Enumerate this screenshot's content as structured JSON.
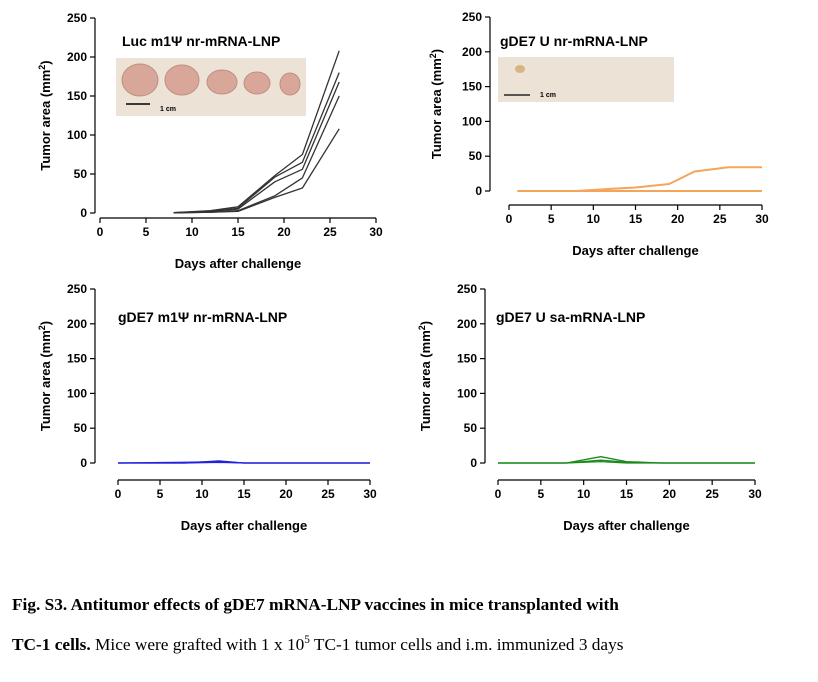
{
  "colors": {
    "luc": "#333333",
    "gde7_u_nr": "#f5a55a",
    "gde7_m1psi": "#2222dd",
    "gde7_sa": "#1b8a1b"
  },
  "chart_data": [
    {
      "type": "line",
      "title": "Luc m1Ψ nr-mRNA-LNP",
      "xlabel": "Days after challenge",
      "ylabel": "Tumor area (mm",
      "ylabel_sup": "2",
      "ylabel_end": ")",
      "xlim": [
        0,
        30
      ],
      "ylim": [
        0,
        250
      ],
      "xticks": [
        0,
        5,
        10,
        15,
        20,
        25,
        30
      ],
      "yticks": [
        0,
        50,
        100,
        150,
        200,
        250
      ],
      "inset": {
        "kind": "tumor-photo",
        "tumors": 5,
        "scalebar_label": "1 cm"
      },
      "color": "#333333",
      "x": [
        8,
        12,
        15,
        19,
        22,
        26
      ],
      "series": [
        {
          "values": [
            0.5,
            3,
            8,
            48,
            75,
            208
          ]
        },
        {
          "values": [
            0.5,
            2,
            6,
            46,
            65,
            180
          ]
        },
        {
          "values": [
            0.3,
            2,
            5,
            40,
            56,
            168
          ]
        },
        {
          "values": [
            0.2,
            1,
            3,
            22,
            45,
            150
          ]
        },
        {
          "values": [
            0.1,
            1,
            2,
            20,
            32,
            108
          ]
        }
      ]
    },
    {
      "type": "line",
      "title": "gDE7 U nr-mRNA-LNP",
      "xlabel": "Days after challenge",
      "ylabel": "Tumor area (mm",
      "ylabel_sup": "2",
      "ylabel_end": ")",
      "xlim": [
        0,
        30
      ],
      "ylim": [
        0,
        250
      ],
      "xticks": [
        0,
        5,
        10,
        15,
        20,
        25,
        30
      ],
      "yticks": [
        0,
        50,
        100,
        150,
        200,
        250
      ],
      "inset": {
        "kind": "tumor-photo",
        "tumors": 1,
        "scalebar_label": "1 cm"
      },
      "color": "#f5a55a",
      "x": [
        1,
        8,
        12,
        15,
        19,
        22,
        26,
        30
      ],
      "series": [
        {
          "values": [
            0,
            0,
            3,
            5,
            10,
            28,
            34,
            34
          ]
        },
        {
          "values": [
            0,
            0,
            0,
            0,
            0,
            0,
            0,
            0
          ]
        }
      ]
    },
    {
      "type": "line",
      "title": "gDE7 m1Ψ nr-mRNA-LNP",
      "xlabel": "Days after challenge",
      "ylabel": "Tumor area (mm",
      "ylabel_sup": "2",
      "ylabel_end": ")",
      "xlim": [
        0,
        30
      ],
      "ylim": [
        0,
        250
      ],
      "xticks": [
        0,
        5,
        10,
        15,
        20,
        25,
        30
      ],
      "yticks": [
        0,
        50,
        100,
        150,
        200,
        250
      ],
      "color": "#2222dd",
      "x": [
        0,
        8,
        12,
        15,
        19,
        22,
        26,
        30
      ],
      "series": [
        {
          "values": [
            0,
            0,
            3,
            0,
            0,
            0,
            0,
            0
          ]
        },
        {
          "values": [
            0,
            1,
            2,
            0,
            0,
            0,
            0,
            0
          ]
        },
        {
          "values": [
            0,
            0,
            1,
            0,
            0,
            0,
            0,
            0
          ]
        }
      ]
    },
    {
      "type": "line",
      "title": "gDE7 U sa-mRNA-LNP",
      "xlabel": "Days after challenge",
      "ylabel": "Tumor area (mm",
      "ylabel_sup": "2",
      "ylabel_end": ")",
      "xlim": [
        0,
        30
      ],
      "ylim": [
        0,
        250
      ],
      "xticks": [
        0,
        5,
        10,
        15,
        20,
        25,
        30
      ],
      "yticks": [
        0,
        50,
        100,
        150,
        200,
        250
      ],
      "color": "#1b8a1b",
      "x": [
        0,
        8,
        12,
        15,
        19,
        22,
        26,
        30
      ],
      "series": [
        {
          "values": [
            0,
            0,
            9,
            2,
            0,
            0,
            0,
            0
          ]
        },
        {
          "values": [
            0,
            0,
            4,
            1,
            0,
            0,
            0,
            0
          ]
        },
        {
          "values": [
            0,
            0,
            2,
            0,
            0,
            0,
            0,
            0
          ]
        }
      ]
    }
  ],
  "caption": {
    "heading": "Fig. S3. Antitumor effects of gDE7 mRNA-LNP vaccines in mice transplanted with",
    "lead": "TC-1 cells.",
    "text_a": " Mice were grafted with 1 x 10",
    "text_sup": "5",
    "text_b": " TC-1 tumor cells and i.m. immunized 3 days"
  }
}
